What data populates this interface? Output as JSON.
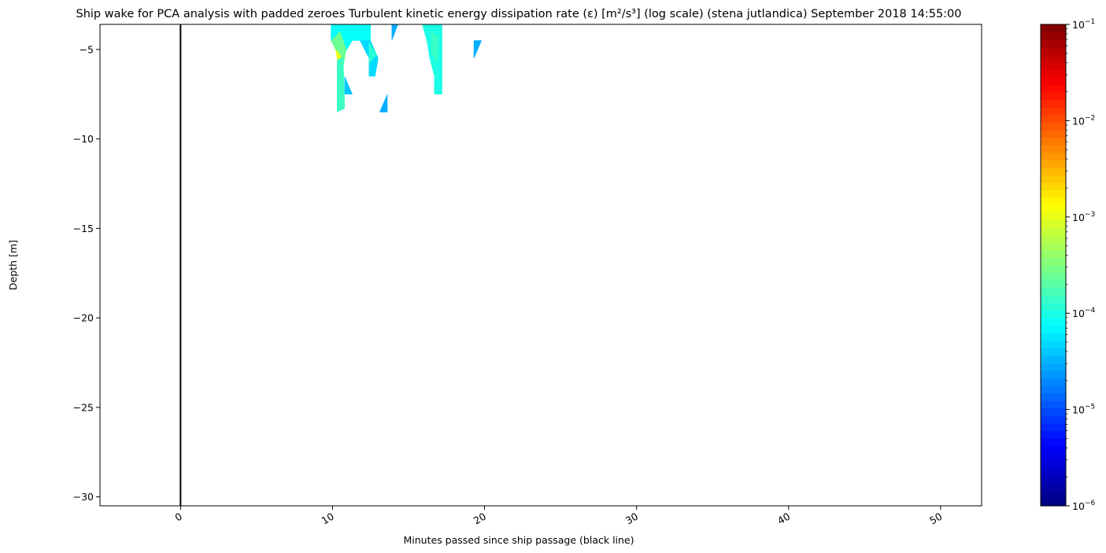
{
  "chart_data": {
    "type": "heatmap",
    "title": "Ship wake for PCA analysis with padded zeroes Turbulent kinetic energy dissipation rate (ε) [m²/s³] (log scale) (stena jutlandica) September 2018 14:55:00",
    "xlabel": "Minutes passed since ship passage (black line)",
    "ylabel": "Depth [m]",
    "xlim": [
      -5.3,
      52.7
    ],
    "ylim": [
      -30.5,
      -3.6
    ],
    "x_ticks": [
      0,
      10,
      20,
      30,
      40,
      50
    ],
    "x_tick_labels": [
      "0",
      "10",
      "20",
      "30",
      "40",
      "50"
    ],
    "y_ticks": [
      -5,
      -10,
      -15,
      -20,
      -25,
      -30
    ],
    "y_tick_labels": [
      "−5",
      "−10",
      "−15",
      "−20",
      "−25",
      "−30"
    ],
    "x_tick_rotation_deg": 30,
    "grid": false,
    "vertical_marker": {
      "x": 0,
      "color": "#000000",
      "meaning": "ship passage"
    },
    "colorbar": {
      "scale": "log",
      "colormap": "jet",
      "range": [
        1e-06,
        0.1
      ],
      "tick_values": [
        1e-06,
        1e-05,
        0.0001,
        0.001,
        0.01,
        0.1
      ],
      "tick_labels": [
        {
          "base": "10",
          "exp": "−6"
        },
        {
          "base": "10",
          "exp": "−5"
        },
        {
          "base": "10",
          "exp": "−4"
        },
        {
          "base": "10",
          "exp": "−3"
        },
        {
          "base": "10",
          "exp": "−2"
        },
        {
          "base": "10",
          "exp": "−1"
        }
      ]
    },
    "regions": [
      {
        "value": 8e-05,
        "points": [
          [
            9.9,
            -3.6
          ],
          [
            12.5,
            -3.6
          ],
          [
            12.5,
            -4.5
          ],
          [
            11.3,
            -4.5
          ],
          [
            10.6,
            -5.5
          ],
          [
            9.9,
            -4.5
          ]
        ]
      },
      {
        "value": 0.00025,
        "points": [
          [
            9.9,
            -4.5
          ],
          [
            10.5,
            -4.0
          ],
          [
            10.9,
            -5.0
          ],
          [
            10.7,
            -6.0
          ],
          [
            10.2,
            -5.0
          ]
        ]
      },
      {
        "value": 0.0011,
        "points": [
          [
            10.2,
            -5.0
          ],
          [
            10.6,
            -5.4
          ],
          [
            10.7,
            -6.5
          ],
          [
            10.4,
            -6.0
          ]
        ]
      },
      {
        "value": 0.00015,
        "points": [
          [
            10.3,
            -5.6
          ],
          [
            10.7,
            -5.4
          ],
          [
            10.8,
            -8.3
          ],
          [
            10.3,
            -8.5
          ]
        ]
      },
      {
        "value": 4e-05,
        "points": [
          [
            10.8,
            -6.5
          ],
          [
            11.3,
            -7.5
          ],
          [
            10.8,
            -7.5
          ]
        ]
      },
      {
        "value": 5e-05,
        "points": [
          [
            11.8,
            -4.5
          ],
          [
            12.5,
            -4.5
          ],
          [
            13.0,
            -5.5
          ],
          [
            12.8,
            -6.5
          ],
          [
            12.4,
            -6.5
          ],
          [
            12.4,
            -5.5
          ]
        ]
      },
      {
        "value": 0.00012,
        "points": [
          [
            12.4,
            -4.6
          ],
          [
            12.9,
            -5.3
          ],
          [
            12.4,
            -5.8
          ]
        ]
      },
      {
        "value": 3e-05,
        "points": [
          [
            13.9,
            -3.6
          ],
          [
            14.3,
            -3.6
          ],
          [
            13.9,
            -4.5
          ]
        ]
      },
      {
        "value": 3e-05,
        "points": [
          [
            13.1,
            -8.5
          ],
          [
            13.6,
            -7.5
          ],
          [
            13.6,
            -8.5
          ]
        ]
      },
      {
        "value": 0.0001,
        "points": [
          [
            15.9,
            -3.6
          ],
          [
            17.2,
            -3.6
          ],
          [
            17.2,
            -7.5
          ],
          [
            16.7,
            -7.5
          ],
          [
            16.7,
            -6.5
          ],
          [
            16.4,
            -5.5
          ],
          [
            16.2,
            -4.5
          ]
        ]
      },
      {
        "value": 0.00014,
        "points": [
          [
            16.5,
            -4.0
          ],
          [
            17.0,
            -4.3
          ],
          [
            16.9,
            -5.8
          ],
          [
            16.5,
            -5.2
          ]
        ]
      },
      {
        "value": 3e-05,
        "points": [
          [
            19.3,
            -4.5
          ],
          [
            19.8,
            -4.5
          ],
          [
            19.3,
            -5.5
          ]
        ]
      }
    ]
  }
}
